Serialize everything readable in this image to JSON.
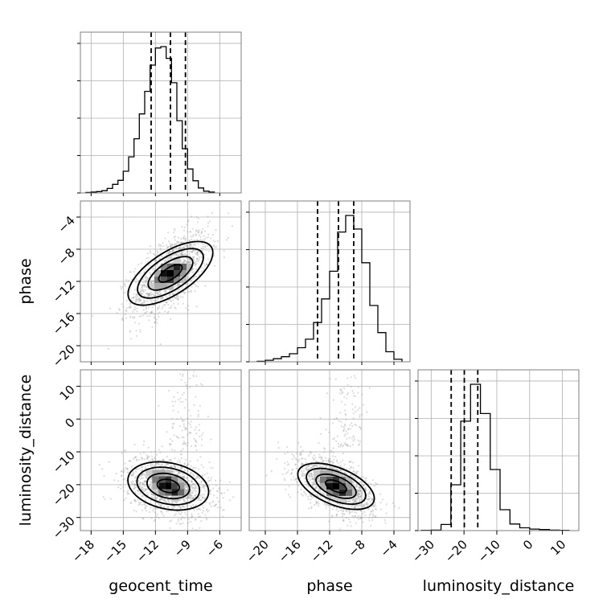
{
  "chart_data": {
    "type": "corner",
    "parameters": [
      "geocent_time",
      "phase",
      "luminosity_distance"
    ],
    "labels": {
      "geocent_time": "geocent_time",
      "phase": "phase",
      "luminosity_distance": "luminosity_distance"
    },
    "ranges": {
      "geocent_time": [
        -19,
        -4
      ],
      "phase": [
        -22,
        -2
      ],
      "luminosity_distance": [
        -34,
        15
      ]
    },
    "ticks": {
      "geocent_time": [
        -18,
        -15,
        -12,
        -9,
        -6
      ],
      "phase": [
        -20,
        -16,
        -12,
        -8,
        -4
      ],
      "luminosity_distance": [
        -30,
        -20,
        -10,
        0,
        10
      ]
    },
    "quantiles": {
      "geocent_time": [
        -12.4,
        -10.6,
        -9.2
      ],
      "phase": [
        -13.5,
        -10.9,
        -9.0
      ],
      "luminosity_distance": [
        -23.9,
        -19.9,
        -15.8
      ]
    },
    "histograms": {
      "geocent_time": {
        "bins": [
          -18.5,
          -18.0,
          -17.5,
          -17.0,
          -16.5,
          -16.0,
          -15.5,
          -15.0,
          -14.5,
          -14.0,
          -13.5,
          -13.0,
          -12.5,
          -12.0,
          -11.5,
          -11.0,
          -10.5,
          -10.0,
          -9.5,
          -9.0,
          -8.5,
          -8.0,
          -7.5,
          -7.0,
          -6.5
        ],
        "counts": [
          1,
          2,
          3,
          5,
          10,
          19,
          28,
          48,
          80,
          120,
          175,
          225,
          283,
          321,
          324,
          298,
          244,
          160,
          98,
          53,
          27,
          11,
          4,
          2
        ]
      },
      "phase": {
        "bins": [
          -21,
          -20,
          -19,
          -18,
          -17,
          -16,
          -15,
          -14,
          -13,
          -12,
          -11,
          -10,
          -9,
          -8,
          -7,
          -6,
          -5,
          -4,
          -3
        ],
        "counts": [
          1,
          3,
          6,
          10,
          16,
          28,
          45,
          78,
          125,
          180,
          258,
          291,
          264,
          197,
          112,
          58,
          20,
          5
        ]
      },
      "luminosity_distance": {
        "bins": [
          -33,
          -30,
          -27,
          -24,
          -21,
          -18,
          -15,
          -12,
          -9,
          -6,
          -3,
          0,
          3,
          6,
          9,
          12
        ],
        "counts": [
          1,
          2,
          24,
          180,
          430,
          575,
          460,
          240,
          82,
          26,
          11,
          6,
          4,
          2,
          1
        ]
      }
    },
    "posterior_2d": {
      "phase_vs_geocent_time": {
        "mean": [
          -10.6,
          -11.0
        ],
        "sigma": [
          1.8,
          2.6
        ],
        "rho": 0.6
      },
      "luminosity_distance_vs_geocent_time": {
        "mean": [
          -10.8,
          -20.4
        ],
        "sigma": [
          2.0,
          4.6
        ],
        "rho": -0.3
      },
      "luminosity_distance_vs_phase": {
        "mean": [
          -11.2,
          -20.5
        ],
        "sigma": [
          2.4,
          4.4
        ],
        "rho": -0.55
      }
    },
    "grid": true
  }
}
